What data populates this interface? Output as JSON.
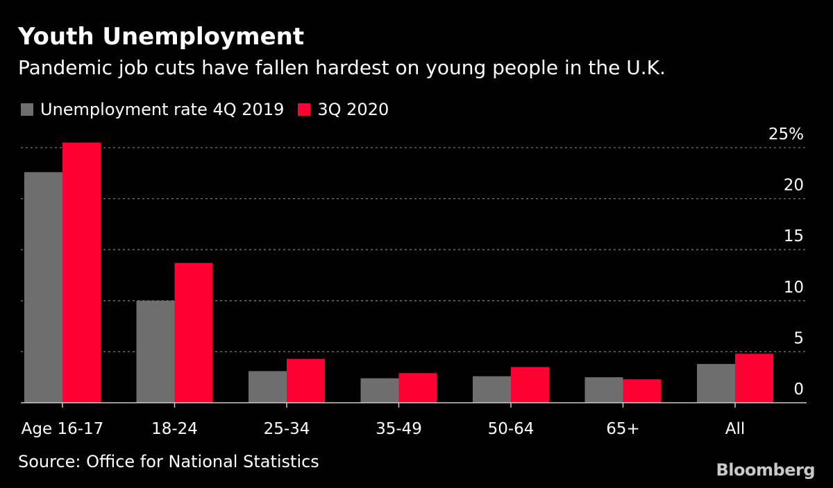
{
  "chart_data": {
    "type": "bar",
    "title": "Youth Unemployment",
    "subtitle": "Pandemic job cuts have fallen hardest on young people in the U.K.",
    "categories": [
      "Age 16-17",
      "18-24",
      "25-34",
      "35-49",
      "50-64",
      "65+",
      "All"
    ],
    "series": [
      {
        "name": "Unemployment rate 4Q 2019",
        "color": "#6e6e6e",
        "values": [
          22.6,
          10.0,
          3.1,
          2.4,
          2.6,
          2.5,
          3.8
        ]
      },
      {
        "name": "3Q 2020",
        "color": "#ff0033",
        "values": [
          25.5,
          13.7,
          4.3,
          2.9,
          3.5,
          2.3,
          4.8
        ]
      }
    ],
    "ylim": [
      0,
      25
    ],
    "yticks": [
      0,
      5,
      10,
      15,
      20,
      25
    ],
    "ytick_labels": [
      "0",
      "5",
      "10",
      "15",
      "20",
      "25%"
    ],
    "y_axis_position": "right",
    "grid": true,
    "legend_position": "top-left",
    "source": "Source: Office for National Statistics",
    "brand": "Bloomberg"
  }
}
